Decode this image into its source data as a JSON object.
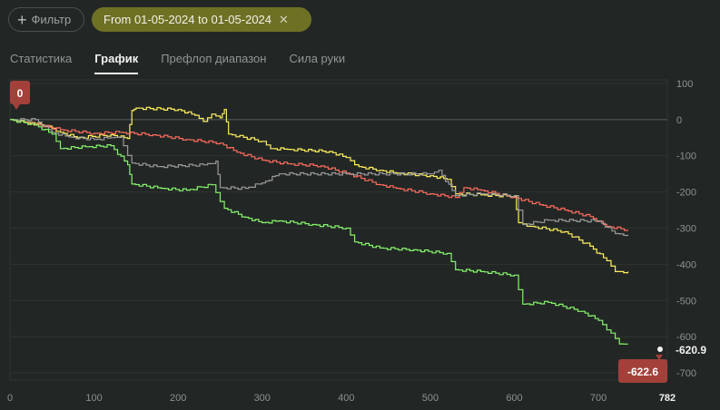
{
  "toolbar": {
    "filter_label": "Фильтр",
    "date_range": "From 01-05-2024 to 01-05-2024"
  },
  "tabs": [
    {
      "label": "Статистика",
      "active": false
    },
    {
      "label": "График",
      "active": true
    },
    {
      "label": "Префлоп диапазон",
      "active": false
    },
    {
      "label": "Сила руки",
      "active": false
    }
  ],
  "chart_data": {
    "type": "line",
    "x_ticks": [
      "0",
      "100",
      "200",
      "300",
      "400",
      "500",
      "600",
      "700",
      "782"
    ],
    "y_ticks": [
      "100",
      "0",
      "-100",
      "-200",
      "-300",
      "-400",
      "-500",
      "-600",
      "-700"
    ],
    "xlim": [
      0,
      782
    ],
    "ylim": [
      -720,
      110
    ],
    "start_marker": "0",
    "end_marker_green": "-622.6",
    "end_label": "-620.9",
    "series": [
      {
        "color": "#ffef5c",
        "points": [
          [
            0,
            0
          ],
          [
            20,
            -8
          ],
          [
            45,
            -18
          ],
          [
            60,
            -35
          ],
          [
            80,
            -50
          ],
          [
            120,
            -42
          ],
          [
            140,
            -52
          ],
          [
            145,
            25
          ],
          [
            150,
            32
          ],
          [
            200,
            28
          ],
          [
            220,
            12
          ],
          [
            230,
            -5
          ],
          [
            240,
            15
          ],
          [
            250,
            5
          ],
          [
            255,
            28
          ],
          [
            260,
            -40
          ],
          [
            300,
            -60
          ],
          [
            310,
            -80
          ],
          [
            330,
            -82
          ],
          [
            380,
            -88
          ],
          [
            400,
            -105
          ],
          [
            415,
            -130
          ],
          [
            440,
            -140
          ],
          [
            460,
            -148
          ],
          [
            500,
            -155
          ],
          [
            520,
            -165
          ],
          [
            530,
            -205
          ],
          [
            560,
            -208
          ],
          [
            600,
            -212
          ],
          [
            605,
            -285
          ],
          [
            620,
            -295
          ],
          [
            660,
            -310
          ],
          [
            690,
            -350
          ],
          [
            710,
            -390
          ],
          [
            720,
            -420
          ],
          [
            735,
            -420
          ]
        ]
      },
      {
        "color": "#ff6b5c",
        "points": [
          [
            0,
            0
          ],
          [
            30,
            -12
          ],
          [
            60,
            -28
          ],
          [
            100,
            -38
          ],
          [
            130,
            -35
          ],
          [
            170,
            -42
          ],
          [
            210,
            -55
          ],
          [
            250,
            -65
          ],
          [
            270,
            -90
          ],
          [
            300,
            -112
          ],
          [
            330,
            -122
          ],
          [
            370,
            -128
          ],
          [
            400,
            -148
          ],
          [
            440,
            -180
          ],
          [
            460,
            -190
          ],
          [
            500,
            -205
          ],
          [
            530,
            -215
          ],
          [
            540,
            -188
          ],
          [
            560,
            -195
          ],
          [
            600,
            -215
          ],
          [
            630,
            -235
          ],
          [
            660,
            -250
          ],
          [
            690,
            -268
          ],
          [
            710,
            -295
          ],
          [
            735,
            -305
          ]
        ]
      },
      {
        "color": "#9a9a9a",
        "points": [
          [
            0,
            0
          ],
          [
            30,
            0
          ],
          [
            50,
            -35
          ],
          [
            70,
            -48
          ],
          [
            100,
            -55
          ],
          [
            120,
            -50
          ],
          [
            130,
            -48
          ],
          [
            145,
            -120
          ],
          [
            175,
            -130
          ],
          [
            230,
            -125
          ],
          [
            245,
            -115
          ],
          [
            250,
            -188
          ],
          [
            280,
            -190
          ],
          [
            300,
            -175
          ],
          [
            320,
            -150
          ],
          [
            400,
            -150
          ],
          [
            500,
            -150
          ],
          [
            510,
            -140
          ],
          [
            530,
            -210
          ],
          [
            560,
            -205
          ],
          [
            600,
            -210
          ],
          [
            610,
            -290
          ],
          [
            640,
            -278
          ],
          [
            700,
            -280
          ],
          [
            720,
            -315
          ],
          [
            735,
            -318
          ]
        ]
      },
      {
        "color": "#86f56a",
        "points": [
          [
            0,
            0
          ],
          [
            30,
            -15
          ],
          [
            50,
            -40
          ],
          [
            60,
            -80
          ],
          [
            90,
            -75
          ],
          [
            120,
            -72
          ],
          [
            140,
            -125
          ],
          [
            145,
            -178
          ],
          [
            180,
            -190
          ],
          [
            210,
            -195
          ],
          [
            240,
            -180
          ],
          [
            255,
            -245
          ],
          [
            280,
            -270
          ],
          [
            300,
            -285
          ],
          [
            320,
            -280
          ],
          [
            360,
            -290
          ],
          [
            400,
            -300
          ],
          [
            410,
            -338
          ],
          [
            440,
            -355
          ],
          [
            480,
            -360
          ],
          [
            520,
            -370
          ],
          [
            530,
            -415
          ],
          [
            560,
            -420
          ],
          [
            600,
            -430
          ],
          [
            610,
            -510
          ],
          [
            640,
            -505
          ],
          [
            680,
            -530
          ],
          [
            700,
            -555
          ],
          [
            715,
            -590
          ],
          [
            725,
            -620
          ],
          [
            735,
            -621
          ]
        ]
      }
    ]
  }
}
